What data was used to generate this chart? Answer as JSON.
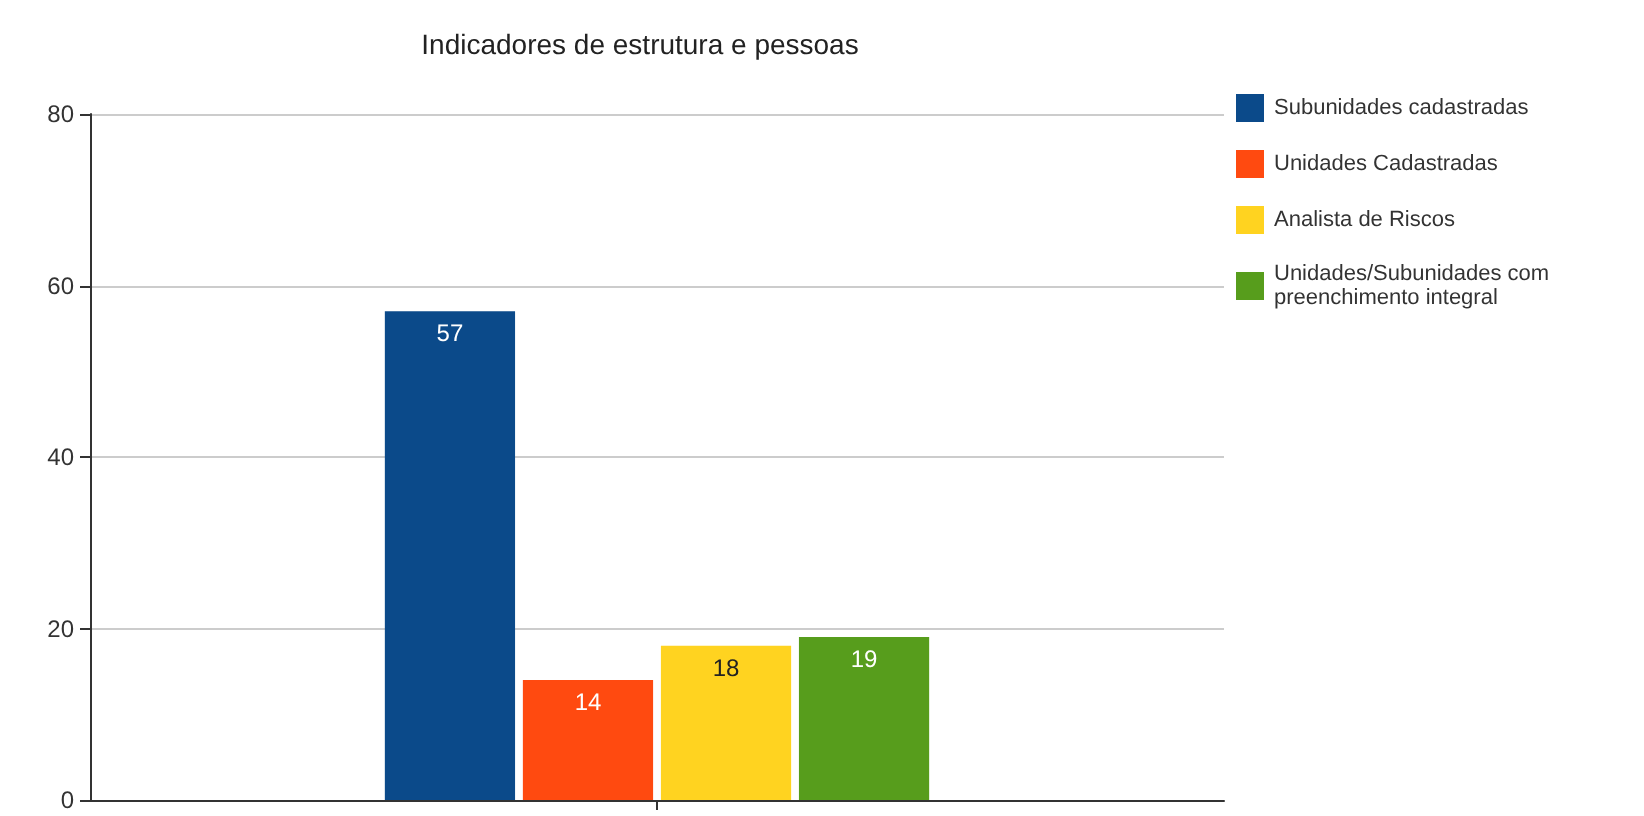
{
  "chart_data": {
    "type": "bar",
    "title": "Indicadores de estrutura e pessoas",
    "categories": [
      null
    ],
    "series": [
      {
        "name": "Subunidades cadastradas",
        "color": "#0b4a8a",
        "values": [
          57
        ]
      },
      {
        "name": "Unidades Cadastradas",
        "color": "#ff4a10",
        "values": [
          14
        ]
      },
      {
        "name": "Analista de Riscos",
        "color": "#ffd320",
        "values": [
          18
        ]
      },
      {
        "name": "Unidades/Subunidades com preenchimento integral",
        "color": "#579d1c",
        "values": [
          19
        ]
      }
    ],
    "ylim": [
      0,
      80
    ],
    "yticks": [
      0,
      20,
      40,
      60,
      80
    ],
    "grid": "y",
    "legend": "right",
    "data_labels": true
  }
}
